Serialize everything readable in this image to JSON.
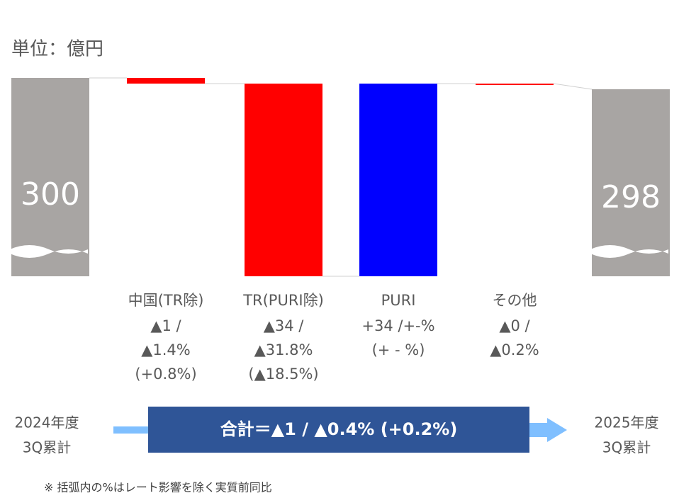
{
  "chart_data": {
    "type": "waterfall",
    "unit_label": "単位：億円",
    "start": {
      "value": 300,
      "label": [
        "2024年度",
        "3Q累計"
      ],
      "color": "#a8a5a3"
    },
    "end": {
      "value": 298,
      "label": [
        "2025年度",
        "3Q累計"
      ],
      "color": "#a8a5a3"
    },
    "categories": [
      "中国(TR除)",
      "TR(PURI除)",
      "PURI",
      "その他"
    ],
    "values": [
      -1,
      -34,
      34,
      0
    ],
    "colors": [
      "#ff0000",
      "#ff0000",
      "#0000ff",
      "#ff0000"
    ],
    "value_labels": [
      [
        "▲1 /",
        "▲1.4%",
        "(+0.8%)"
      ],
      [
        "▲34 /",
        "▲31.8%",
        "(▲18.5%)"
      ],
      [
        "+34 /+-%",
        "(+ - %)"
      ],
      [
        "▲0 /",
        "▲0.2%"
      ]
    ],
    "total_label": "合計＝▲1 / ▲0.4% (+0.2%)",
    "footnote": "※ 括弧内の%はレート影響を除く実質前同比"
  }
}
